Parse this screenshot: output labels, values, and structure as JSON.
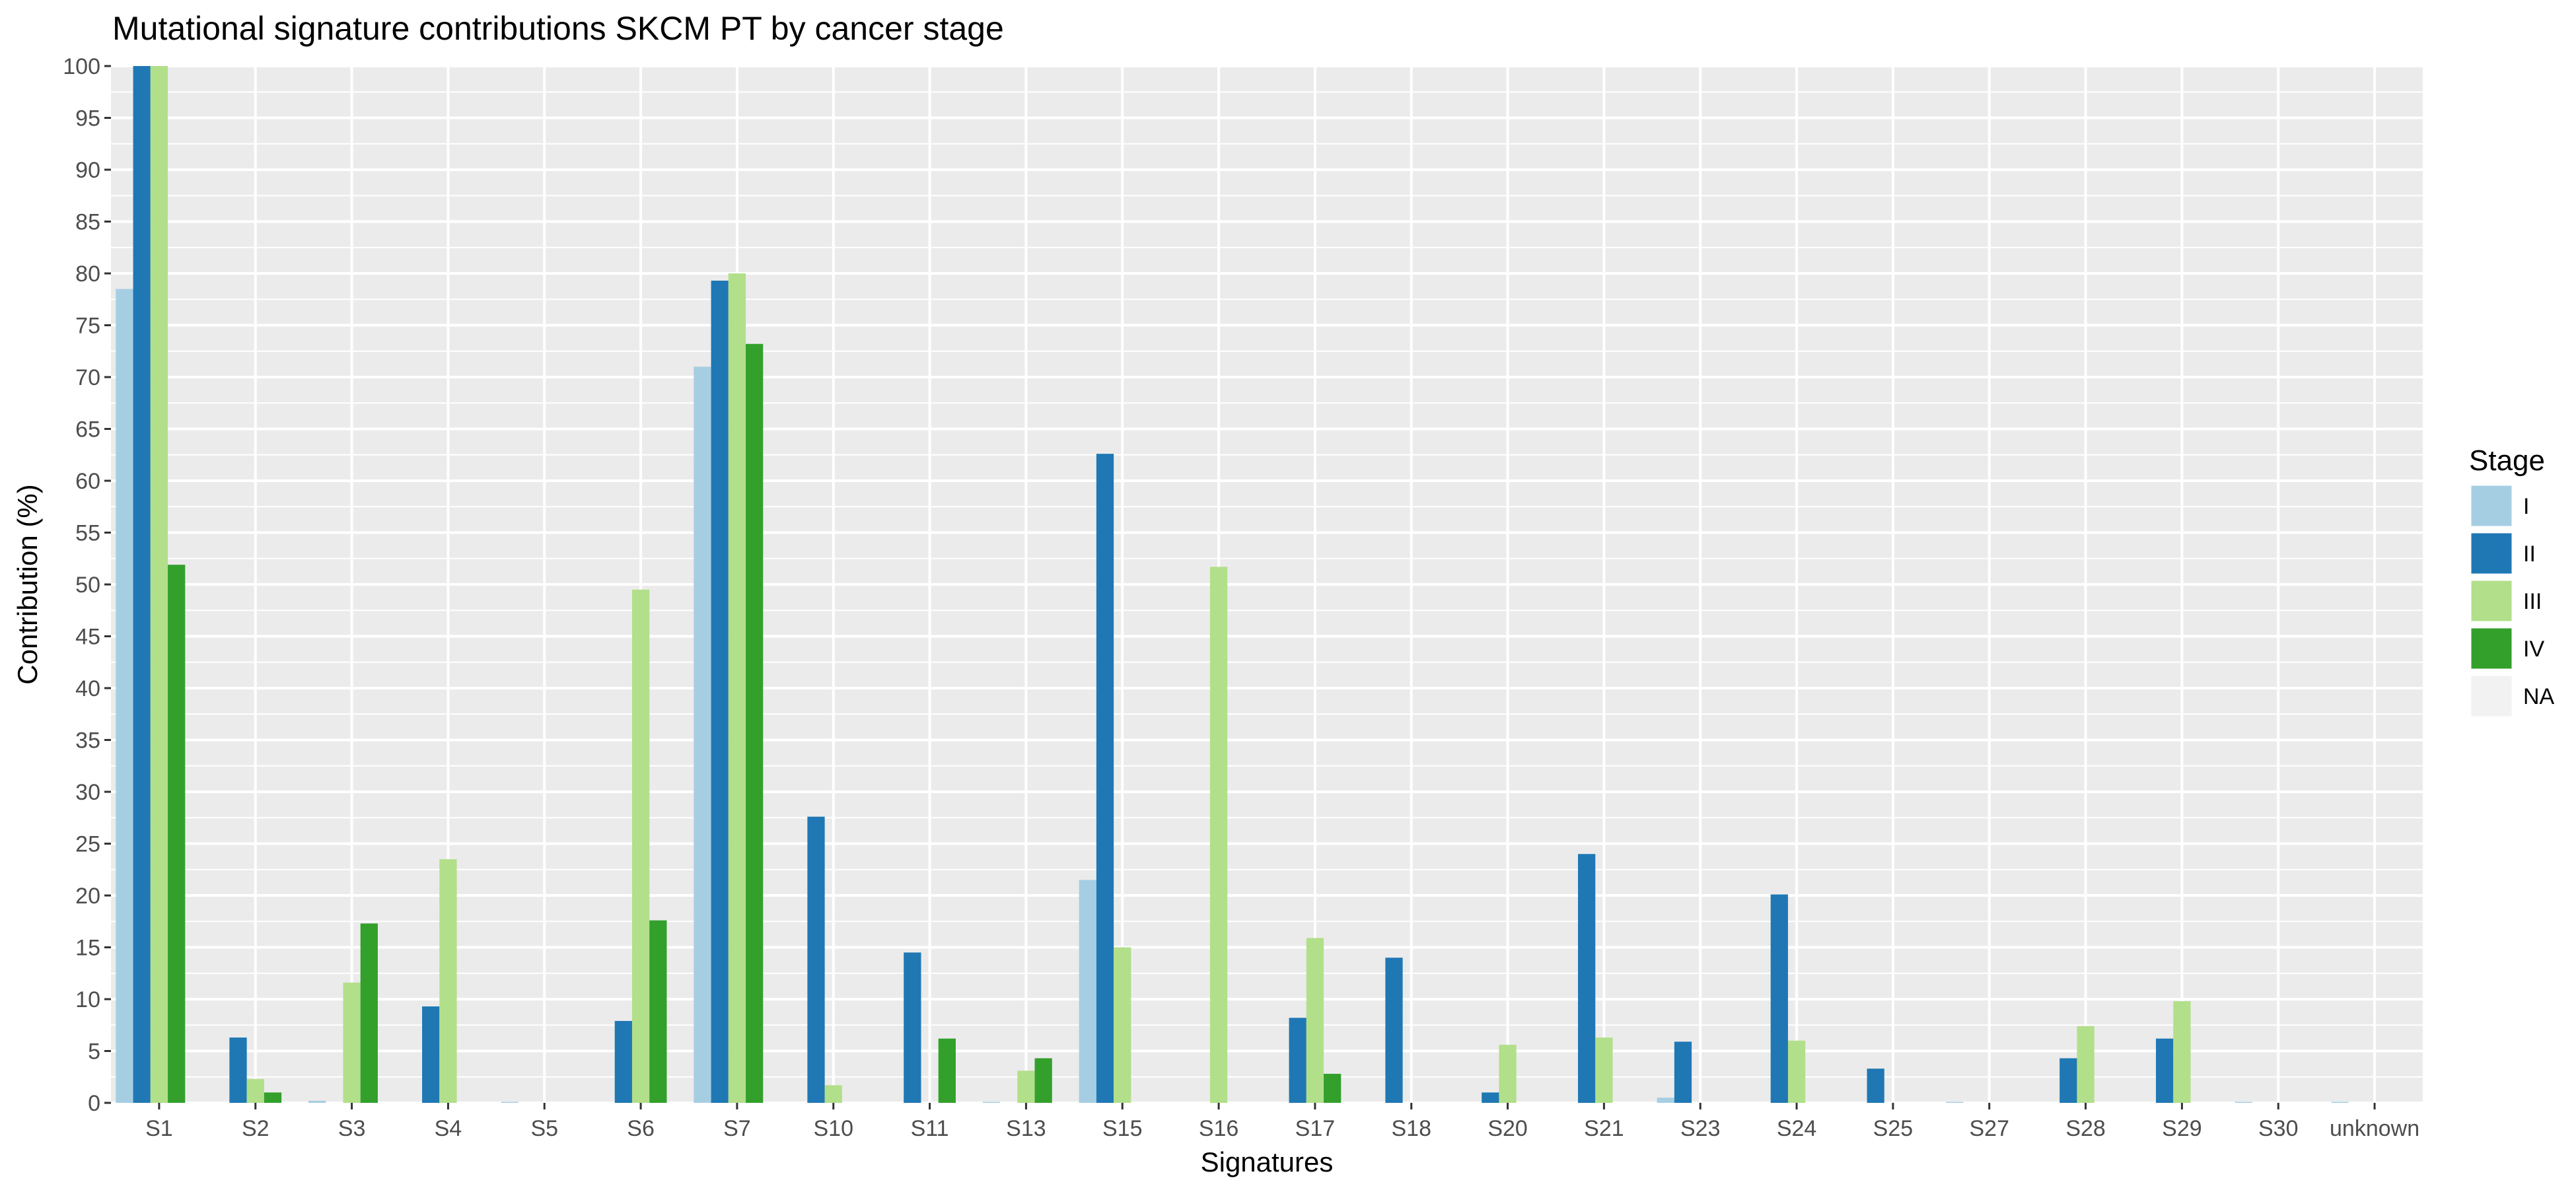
{
  "chart_data": {
    "type": "bar",
    "title": "Mutational signature contributions SKCM PT by cancer stage",
    "xlabel": "Signatures",
    "ylabel": "Contribution (%)",
    "ylim": [
      0,
      100
    ],
    "y_ticks": [
      0,
      5,
      10,
      15,
      20,
      25,
      30,
      35,
      40,
      45,
      50,
      55,
      60,
      65,
      70,
      75,
      80,
      85,
      90,
      95,
      100
    ],
    "grid": true,
    "panel_background": "#EBEBEB",
    "legend": {
      "title": "Stage",
      "placement": "right"
    },
    "categories": [
      "S1",
      "S2",
      "S3",
      "S4",
      "S5",
      "S6",
      "S7",
      "S10",
      "S11",
      "S13",
      "S15",
      "S16",
      "S17",
      "S18",
      "S20",
      "S21",
      "S23",
      "S24",
      "S25",
      "S27",
      "S28",
      "S29",
      "S30",
      "unknown"
    ],
    "series": [
      {
        "name": "I",
        "color": "#A6CEE3",
        "values": [
          78.5,
          0,
          0.2,
          0,
          0.1,
          0,
          71.0,
          0,
          0,
          0.1,
          21.5,
          0,
          0,
          0,
          0,
          0,
          0.5,
          0,
          0,
          0.1,
          0,
          0,
          0.1,
          0.1
        ]
      },
      {
        "name": "II",
        "color": "#1F78B4",
        "values": [
          100,
          6.3,
          0,
          9.3,
          0,
          7.9,
          79.3,
          27.6,
          14.5,
          0,
          62.6,
          0,
          8.2,
          14.0,
          1.0,
          24.0,
          5.9,
          20.1,
          3.3,
          0,
          4.3,
          6.2,
          0,
          0
        ]
      },
      {
        "name": "III",
        "color": "#B2DF8A",
        "values": [
          100,
          2.3,
          11.6,
          23.5,
          0,
          49.5,
          80.0,
          1.7,
          0,
          3.1,
          15.0,
          51.7,
          15.9,
          0,
          5.6,
          6.3,
          0,
          6.0,
          0,
          0,
          7.4,
          9.8,
          0,
          0
        ]
      },
      {
        "name": "IV",
        "color": "#33A02C",
        "values": [
          51.9,
          1.0,
          17.3,
          0,
          0,
          17.6,
          73.2,
          0,
          6.2,
          4.3,
          0,
          0,
          2.8,
          0,
          0,
          0,
          0,
          0,
          0,
          0,
          0,
          0,
          0,
          0
        ]
      },
      {
        "name": "NA",
        "color": "#F2F2F2",
        "values": [
          0,
          0,
          0,
          0,
          0,
          0,
          0,
          0,
          0,
          0,
          0,
          0,
          0,
          0,
          0,
          0,
          0,
          0,
          0,
          0,
          0,
          0,
          0,
          0
        ]
      }
    ]
  }
}
